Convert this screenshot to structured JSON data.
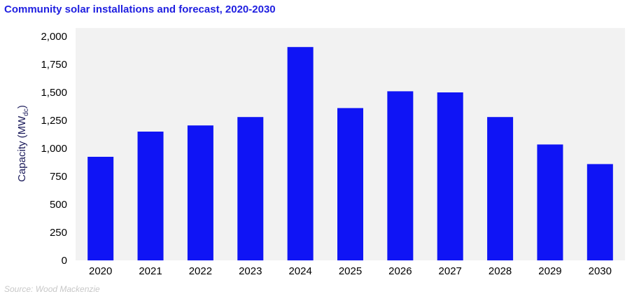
{
  "chart_data": {
    "type": "bar",
    "title": "Community solar installations and forecast, 2020-2030",
    "ylabel": "Capacity (MW",
    "ylabel_subscript": "dc",
    "ylabel_suffix": ")",
    "xlabel": "",
    "categories": [
      "2020",
      "2021",
      "2022",
      "2023",
      "2024",
      "2025",
      "2026",
      "2027",
      "2028",
      "2029",
      "2030"
    ],
    "values": [
      925,
      1150,
      1205,
      1280,
      1905,
      1360,
      1510,
      1500,
      1280,
      1035,
      860
    ],
    "ylim": [
      0,
      2000
    ],
    "yticks": [
      0,
      250,
      500,
      750,
      1000,
      1250,
      1500,
      1750,
      2000
    ],
    "ytick_labels": [
      "0",
      "250",
      "500",
      "750",
      "1,000",
      "1,250",
      "1,500",
      "1,750",
      "2,000"
    ],
    "grid": false,
    "legend": "none",
    "bar_color": "#0f14f5",
    "plot_background": "#f2f2f2",
    "title_color": "#1f1fe0"
  },
  "source": "Source: Wood Mackenzie"
}
